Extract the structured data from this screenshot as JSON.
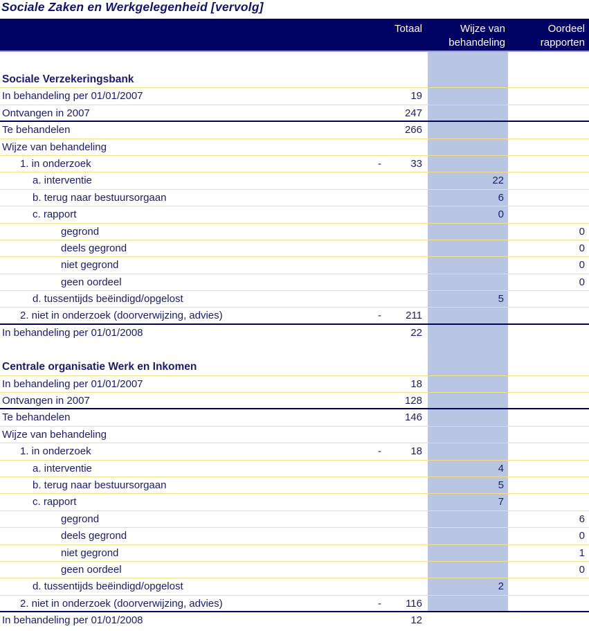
{
  "page_title": "Sociale Zaken en Werkgelegenheid [vervolg]",
  "colors": {
    "header_bar": "#010163",
    "header_bar_bottom_line": "#9b9bce",
    "highlight_band": "#b9c6e3",
    "row_separator": "#f2e186",
    "total_rule": "#00005f",
    "text": "#1b1b6d",
    "header_text": "#ffffff"
  },
  "header": {
    "columns": [
      {
        "line1": "Totaal",
        "line2": ""
      },
      {
        "line1": "Wijze van",
        "line2": "behandeling"
      },
      {
        "line1": "Oordeel",
        "line2": "rapporten"
      }
    ]
  },
  "sections": [
    {
      "title": "Sociale Verzekeringsbank",
      "rows": [
        {
          "label": "In behandeling per 01/01/2007",
          "indent": 0,
          "dash": "",
          "totaal": "19",
          "wijze": "",
          "oordeel": "",
          "line": "yellow"
        },
        {
          "label": "Ontvangen in 2007",
          "indent": 0,
          "dash": "",
          "totaal": "247",
          "wijze": "",
          "oordeel": "",
          "line": "navy"
        },
        {
          "label": "Te behandelen",
          "indent": 0,
          "dash": "",
          "totaal": "266",
          "wijze": "",
          "oordeel": "",
          "line": "yellow"
        },
        {
          "label": "Wijze van behandeling",
          "indent": 0,
          "dash": "",
          "totaal": "",
          "wijze": "",
          "oordeel": "",
          "line": "yellow"
        },
        {
          "label": "1. in onderzoek",
          "indent": 1,
          "dash": "-",
          "totaal": "33",
          "wijze": "",
          "oordeel": "",
          "line": "yellow"
        },
        {
          "label": "a. interventie",
          "indent": 2,
          "dash": "",
          "totaal": "",
          "wijze": "22",
          "oordeel": "",
          "line": "yellow"
        },
        {
          "label": "b. terug naar bestuursorgaan",
          "indent": 2,
          "dash": "",
          "totaal": "",
          "wijze": "6",
          "oordeel": "",
          "line": "yellow"
        },
        {
          "label": "c. rapport",
          "indent": 2,
          "dash": "",
          "totaal": "",
          "wijze": "0",
          "oordeel": "",
          "line": "yellow"
        },
        {
          "label": "gegrond",
          "indent": 3,
          "dash": "",
          "totaal": "",
          "wijze": "",
          "oordeel": "0",
          "line": "yellow"
        },
        {
          "label": "deels gegrond",
          "indent": 3,
          "dash": "",
          "totaal": "",
          "wijze": "",
          "oordeel": "0",
          "line": "yellow"
        },
        {
          "label": "niet gegrond",
          "indent": 3,
          "dash": "",
          "totaal": "",
          "wijze": "",
          "oordeel": "0",
          "line": "yellow"
        },
        {
          "label": "geen oordeel",
          "indent": 3,
          "dash": "",
          "totaal": "",
          "wijze": "",
          "oordeel": "0",
          "line": "yellow"
        },
        {
          "label": "d. tussentijds beëindigd/opgelost",
          "indent": 2,
          "dash": "",
          "totaal": "",
          "wijze": "5",
          "oordeel": "",
          "line": "yellow"
        },
        {
          "label": "2. niet in onderzoek (doorverwijzing, advies)",
          "indent": 1,
          "dash": "-",
          "totaal": "211",
          "wijze": "",
          "oordeel": "",
          "line": "navy"
        },
        {
          "label": "In behandeling per 01/01/2008",
          "indent": 0,
          "dash": "",
          "totaal": "22",
          "wijze": "",
          "oordeel": "",
          "line": "none"
        }
      ]
    },
    {
      "title": "Centrale organisatie Werk en Inkomen",
      "rows": [
        {
          "label": "In behandeling per 01/01/2007",
          "indent": 0,
          "dash": "",
          "totaal": "18",
          "wijze": "",
          "oordeel": "",
          "line": "yellow"
        },
        {
          "label": "Ontvangen in 2007",
          "indent": 0,
          "dash": "",
          "totaal": "128",
          "wijze": "",
          "oordeel": "",
          "line": "navy"
        },
        {
          "label": "Te behandelen",
          "indent": 0,
          "dash": "",
          "totaal": "146",
          "wijze": "",
          "oordeel": "",
          "line": "yellow"
        },
        {
          "label": "Wijze van behandeling",
          "indent": 0,
          "dash": "",
          "totaal": "",
          "wijze": "",
          "oordeel": "",
          "line": "yellow"
        },
        {
          "label": "1. in onderzoek",
          "indent": 1,
          "dash": "-",
          "totaal": "18",
          "wijze": "",
          "oordeel": "",
          "line": "yellow"
        },
        {
          "label": "a. interventie",
          "indent": 2,
          "dash": "",
          "totaal": "",
          "wijze": "4",
          "oordeel": "",
          "line": "yellow"
        },
        {
          "label": "b. terug naar bestuursorgaan",
          "indent": 2,
          "dash": "",
          "totaal": "",
          "wijze": "5",
          "oordeel": "",
          "line": "yellow"
        },
        {
          "label": "c. rapport",
          "indent": 2,
          "dash": "",
          "totaal": "",
          "wijze": "7",
          "oordeel": "",
          "line": "yellow"
        },
        {
          "label": "gegrond",
          "indent": 3,
          "dash": "",
          "totaal": "",
          "wijze": "",
          "oordeel": "6",
          "line": "yellow"
        },
        {
          "label": "deels gegrond",
          "indent": 3,
          "dash": "",
          "totaal": "",
          "wijze": "",
          "oordeel": "0",
          "line": "yellow"
        },
        {
          "label": "niet gegrond",
          "indent": 3,
          "dash": "",
          "totaal": "",
          "wijze": "",
          "oordeel": "1",
          "line": "yellow"
        },
        {
          "label": "geen oordeel",
          "indent": 3,
          "dash": "",
          "totaal": "",
          "wijze": "",
          "oordeel": "0",
          "line": "yellow"
        },
        {
          "label": "d. tussentijds beëindigd/opgelost",
          "indent": 2,
          "dash": "",
          "totaal": "",
          "wijze": "2",
          "oordeel": "",
          "line": "yellow"
        },
        {
          "label": "2. niet in onderzoek (doorverwijzing, advies)",
          "indent": 1,
          "dash": "-",
          "totaal": "116",
          "wijze": "",
          "oordeel": "",
          "line": "navy"
        },
        {
          "label": "In behandeling per 01/01/2008",
          "indent": 0,
          "dash": "",
          "totaal": "12",
          "wijze": "",
          "oordeel": "",
          "line": "none"
        }
      ]
    }
  ]
}
